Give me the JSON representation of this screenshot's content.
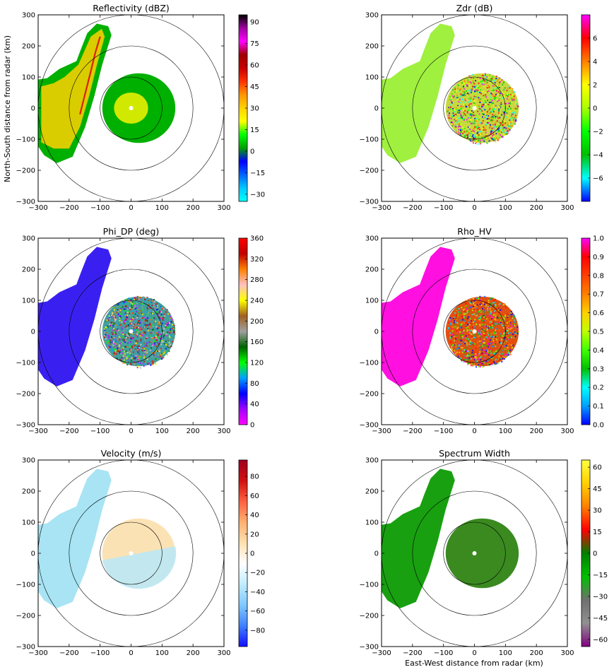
{
  "figure": {
    "ylabel": "North-South distance from radar (km)",
    "xlabel": "East-West distance from radar (km)"
  },
  "chart_data": [
    {
      "type": "heatmap",
      "title": "Reflectivity (dBZ)",
      "xlim": [
        -300,
        300
      ],
      "ylim": [
        -300,
        300
      ],
      "xticks": [
        "−300",
        "−200",
        "−100",
        "0",
        "100",
        "200",
        "300"
      ],
      "yticks": [
        "300",
        "200",
        "100",
        "0",
        "−100",
        "−200",
        "−300"
      ],
      "range_rings_km": [
        100,
        200,
        300
      ],
      "colorbar": {
        "min": -35,
        "max": 95,
        "ticks": [
          "90",
          "75",
          "60",
          "45",
          "30",
          "15",
          "0",
          "−15",
          "−30"
        ],
        "tick_values": [
          90,
          75,
          60,
          45,
          30,
          15,
          0,
          -15,
          -30
        ],
        "colors": [
          "#00ffff",
          "#00c8ff",
          "#0064ff",
          "#0000ff",
          "#00a000",
          "#00ff00",
          "#ffff00",
          "#ffd200",
          "#ff9600",
          "#ff3200",
          "#c80000",
          "#a00000",
          "#ff00ff",
          "#a000a0",
          "#000000"
        ]
      },
      "regions": [
        {
          "name": "precipitation band",
          "color": "#00b000",
          "inner": "#ffd200",
          "core": "#e02000"
        },
        {
          "name": "near-radar echo",
          "color": "#00b000",
          "inner": "#e8f000"
        }
      ]
    },
    {
      "type": "heatmap",
      "title": "Zdr (dB)",
      "xlim": [
        -300,
        300
      ],
      "ylim": [
        -300,
        300
      ],
      "xticks": [
        "−300",
        "−200",
        "−100",
        "0",
        "100",
        "200",
        "300"
      ],
      "yticks": [
        "300",
        "200",
        "100",
        "0",
        "−100",
        "−200",
        "−300"
      ],
      "range_rings_km": [
        100,
        200,
        300
      ],
      "colorbar": {
        "min": -8,
        "max": 8,
        "ticks": [
          "6",
          "4",
          "2",
          "0",
          "−2",
          "−4",
          "−6"
        ],
        "tick_values": [
          6,
          4,
          2,
          0,
          -2,
          -4,
          -6
        ],
        "colors": [
          "#0000ff",
          "#00ffff",
          "#00c000",
          "#00ff00",
          "#aaff00",
          "#ffff00",
          "#ff8000",
          "#ff0000",
          "#ff00ff"
        ]
      },
      "regions": [
        {
          "name": "precipitation band",
          "color": "#a0f040"
        },
        {
          "name": "near-radar echo",
          "color": "#c8d840",
          "noisy": true
        }
      ]
    },
    {
      "type": "heatmap",
      "title": "Phi_DP (deg)",
      "xlim": [
        -300,
        300
      ],
      "ylim": [
        -300,
        300
      ],
      "xticks": [
        "−300",
        "−200",
        "−100",
        "0",
        "100",
        "200",
        "300"
      ],
      "yticks": [
        "300",
        "200",
        "100",
        "0",
        "−100",
        "−200",
        "−300"
      ],
      "range_rings_km": [
        100,
        200,
        300
      ],
      "colorbar": {
        "min": 0,
        "max": 360,
        "ticks": [
          "360",
          "320",
          "280",
          "240",
          "200",
          "160",
          "120",
          "80",
          "40",
          "0"
        ],
        "tick_values": [
          360,
          320,
          280,
          240,
          200,
          160,
          120,
          80,
          40,
          0
        ],
        "colors": [
          "#ff00ff",
          "#a000ff",
          "#0000ff",
          "#00a0ff",
          "#00ff00",
          "#006000",
          "#a0a0a0",
          "#a06020",
          "#ffff00",
          "#ffc0c0",
          "#ff8000",
          "#c00000",
          "#ff0000"
        ]
      },
      "regions": [
        {
          "name": "precipitation band",
          "color": "#3a20f0"
        },
        {
          "name": "near-radar echo",
          "color": "#40a0a0",
          "noisy": true
        }
      ]
    },
    {
      "type": "heatmap",
      "title": "Rho_HV",
      "xlim": [
        -300,
        300
      ],
      "ylim": [
        -300,
        300
      ],
      "xticks": [
        "−300",
        "−200",
        "−100",
        "0",
        "100",
        "200",
        "300"
      ],
      "yticks": [
        "300",
        "200",
        "100",
        "0",
        "−100",
        "−200",
        "−300"
      ],
      "range_rings_km": [
        100,
        200,
        300
      ],
      "colorbar": {
        "min": 0.0,
        "max": 1.0,
        "ticks": [
          "1.0",
          "0.9",
          "0.8",
          "0.7",
          "0.6",
          "0.5",
          "0.4",
          "0.3",
          "0.2",
          "0.1",
          "0.0"
        ],
        "tick_values": [
          1.0,
          0.9,
          0.8,
          0.7,
          0.6,
          0.5,
          0.4,
          0.3,
          0.2,
          0.1,
          0.0
        ],
        "colors": [
          "#0000ff",
          "#00a0ff",
          "#00ffff",
          "#00c000",
          "#40ff00",
          "#c0ff00",
          "#ffd000",
          "#ff8000",
          "#ff4000",
          "#ff0000",
          "#ff00ff"
        ]
      },
      "regions": [
        {
          "name": "precipitation band",
          "color": "#ff10e0"
        },
        {
          "name": "near-radar echo",
          "color": "#e05010",
          "noisy": true
        }
      ]
    },
    {
      "type": "heatmap",
      "title": "Velocity (m/s)",
      "xlim": [
        -300,
        300
      ],
      "ylim": [
        -300,
        300
      ],
      "xticks": [
        "−300",
        "−200",
        "−100",
        "0",
        "100",
        "200",
        "300"
      ],
      "yticks": [
        "300",
        "200",
        "100",
        "0",
        "−100",
        "−200",
        "−300"
      ],
      "range_rings_km": [
        100,
        200,
        300
      ],
      "colorbar": {
        "min": -97,
        "max": 97,
        "ticks": [
          "80",
          "60",
          "40",
          "20",
          "0",
          "−20",
          "−40",
          "−60",
          "−80"
        ],
        "tick_values": [
          80,
          60,
          40,
          20,
          0,
          -20,
          -40,
          -60,
          -80
        ],
        "colors": [
          "#1010ff",
          "#4080ff",
          "#80c8ff",
          "#c0ecff",
          "#ffffff",
          "#ffe0b0",
          "#ffb070",
          "#ff6040",
          "#d01010",
          "#a00020"
        ]
      },
      "regions": [
        {
          "name": "precipitation band",
          "color": "#a8e4f4"
        },
        {
          "name": "near-radar echo",
          "color": "#fbe2b4"
        }
      ]
    },
    {
      "type": "heatmap",
      "title": "Spectrum Width",
      "xlim": [
        -300,
        300
      ],
      "ylim": [
        -300,
        300
      ],
      "xticks": [
        "−300",
        "−200",
        "−100",
        "0",
        "100",
        "200",
        "300"
      ],
      "yticks": [
        "300",
        "200",
        "100",
        "0",
        "−100",
        "−200",
        "−300"
      ],
      "range_rings_km": [
        100,
        200,
        300
      ],
      "colorbar": {
        "min": -65,
        "max": 65,
        "ticks": [
          "60",
          "45",
          "30",
          "15",
          "0",
          "−15",
          "−30",
          "−45",
          "−60"
        ],
        "tick_values": [
          60,
          45,
          30,
          15,
          0,
          -15,
          -30,
          -45,
          -60
        ],
        "colors": [
          "#800080",
          "#909090",
          "#707070",
          "#00c000",
          "#008000",
          "#ff0000",
          "#ff8000",
          "#ffd000",
          "#ffff40"
        ]
      },
      "regions": [
        {
          "name": "precipitation band",
          "color": "#18a010"
        },
        {
          "name": "near-radar echo",
          "color": "#3a8a20"
        }
      ]
    }
  ]
}
